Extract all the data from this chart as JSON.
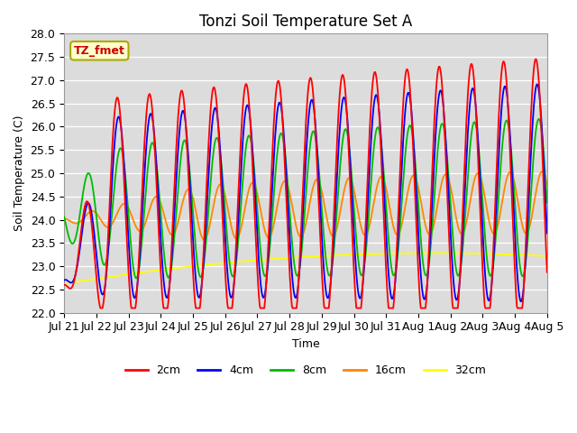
{
  "title": "Tonzi Soil Temperature Set A",
  "xlabel": "Time",
  "ylabel": "Soil Temperature (C)",
  "ylim": [
    22.0,
    28.0
  ],
  "yticks": [
    22.0,
    22.5,
    23.0,
    23.5,
    24.0,
    24.5,
    25.0,
    25.5,
    26.0,
    26.5,
    27.0,
    27.5,
    28.0
  ],
  "x_tick_labels": [
    "Jul 21",
    "Jul 22",
    "Jul 23",
    "Jul 24",
    "Jul 25",
    "Jul 26",
    "Jul 27",
    "Jul 28",
    "Jul 29",
    "Jul 30",
    "Jul 31",
    "Aug 1",
    "Aug 2",
    "Aug 3",
    "Aug 4",
    "Aug 5"
  ],
  "colors": {
    "2cm": "#ff0000",
    "4cm": "#0000ff",
    "8cm": "#00bb00",
    "16cm": "#ff8800",
    "32cm": "#ffff00"
  },
  "annotation_text": "TZ_fmet",
  "annotation_color": "#cc0000",
  "annotation_bg": "#ffffcc",
  "annotation_border": "#aaaa00",
  "plot_bg_color": "#dcdcdc",
  "title_fontsize": 12,
  "axis_fontsize": 9,
  "legend_fontsize": 9
}
